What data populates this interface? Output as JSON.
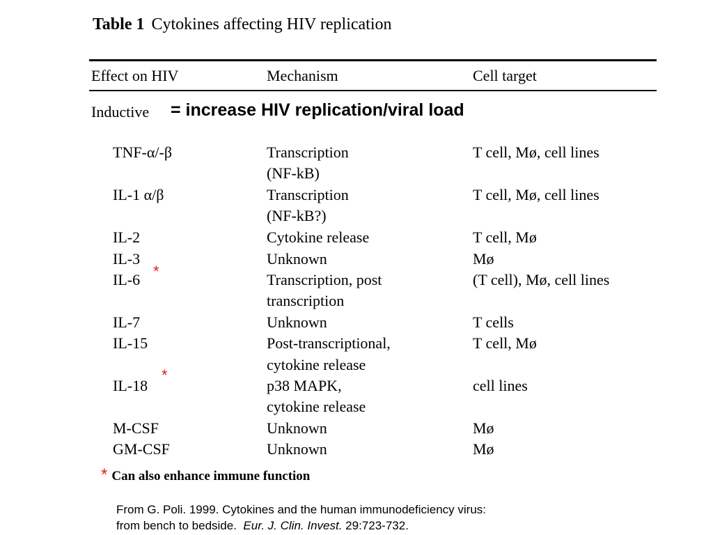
{
  "caption": {
    "number": "Table 1",
    "title": "Cytokines affecting HIV replication"
  },
  "columns": [
    "Effect on HIV",
    "Mechanism",
    "Cell target"
  ],
  "section": {
    "label": "Inductive",
    "note": "= increase HIV replication/viral load"
  },
  "rows": [
    {
      "cytokine": "TNF-α/-β",
      "mechanism": [
        "Transcription",
        "(NF-kB)"
      ],
      "target": "T cell, Mø, cell lines"
    },
    {
      "cytokine": "IL-1 α/β",
      "mechanism": [
        "Transcription",
        "(NF-kB?)"
      ],
      "target": "T cell, Mø, cell lines"
    },
    {
      "cytokine": "IL-2",
      "mechanism": [
        "Cytokine release"
      ],
      "target": "T cell, Mø"
    },
    {
      "cytokine": "IL-3",
      "mechanism": [
        "Unknown"
      ],
      "target": "Mø"
    },
    {
      "cytokine": "IL-6",
      "mechanism": [
        "Transcription, post",
        "transcription"
      ],
      "target": "(T cell), Mø, cell lines"
    },
    {
      "cytokine": "IL-7",
      "mechanism": [
        "Unknown"
      ],
      "target": "T cells"
    },
    {
      "cytokine": "IL-15",
      "mechanism": [
        "Post-transcriptional,",
        "cytokine release"
      ],
      "target": "T cell, Mø"
    },
    {
      "cytokine": "IL-18",
      "mechanism": [
        "p38 MAPK,",
        "cytokine release"
      ],
      "target": "cell lines"
    },
    {
      "cytokine": "M-CSF",
      "mechanism": [
        "Unknown"
      ],
      "target": "Mø"
    },
    {
      "cytokine": "GM-CSF",
      "mechanism": [
        "Unknown"
      ],
      "target": "Mø"
    }
  ],
  "star": "*",
  "footnote": {
    "marker": "*",
    "text": "Can also enhance immune function"
  },
  "citation": {
    "line1": "From G. Poli.  1999.  Cytokines and the human immunodeficiency virus:",
    "line2_pre": "from bench to bedside.",
    "journal": "Eur. J. Clin. Invest.",
    "ref": "29:723-732."
  },
  "colors": {
    "star": "#e0201c",
    "text": "#000000"
  }
}
